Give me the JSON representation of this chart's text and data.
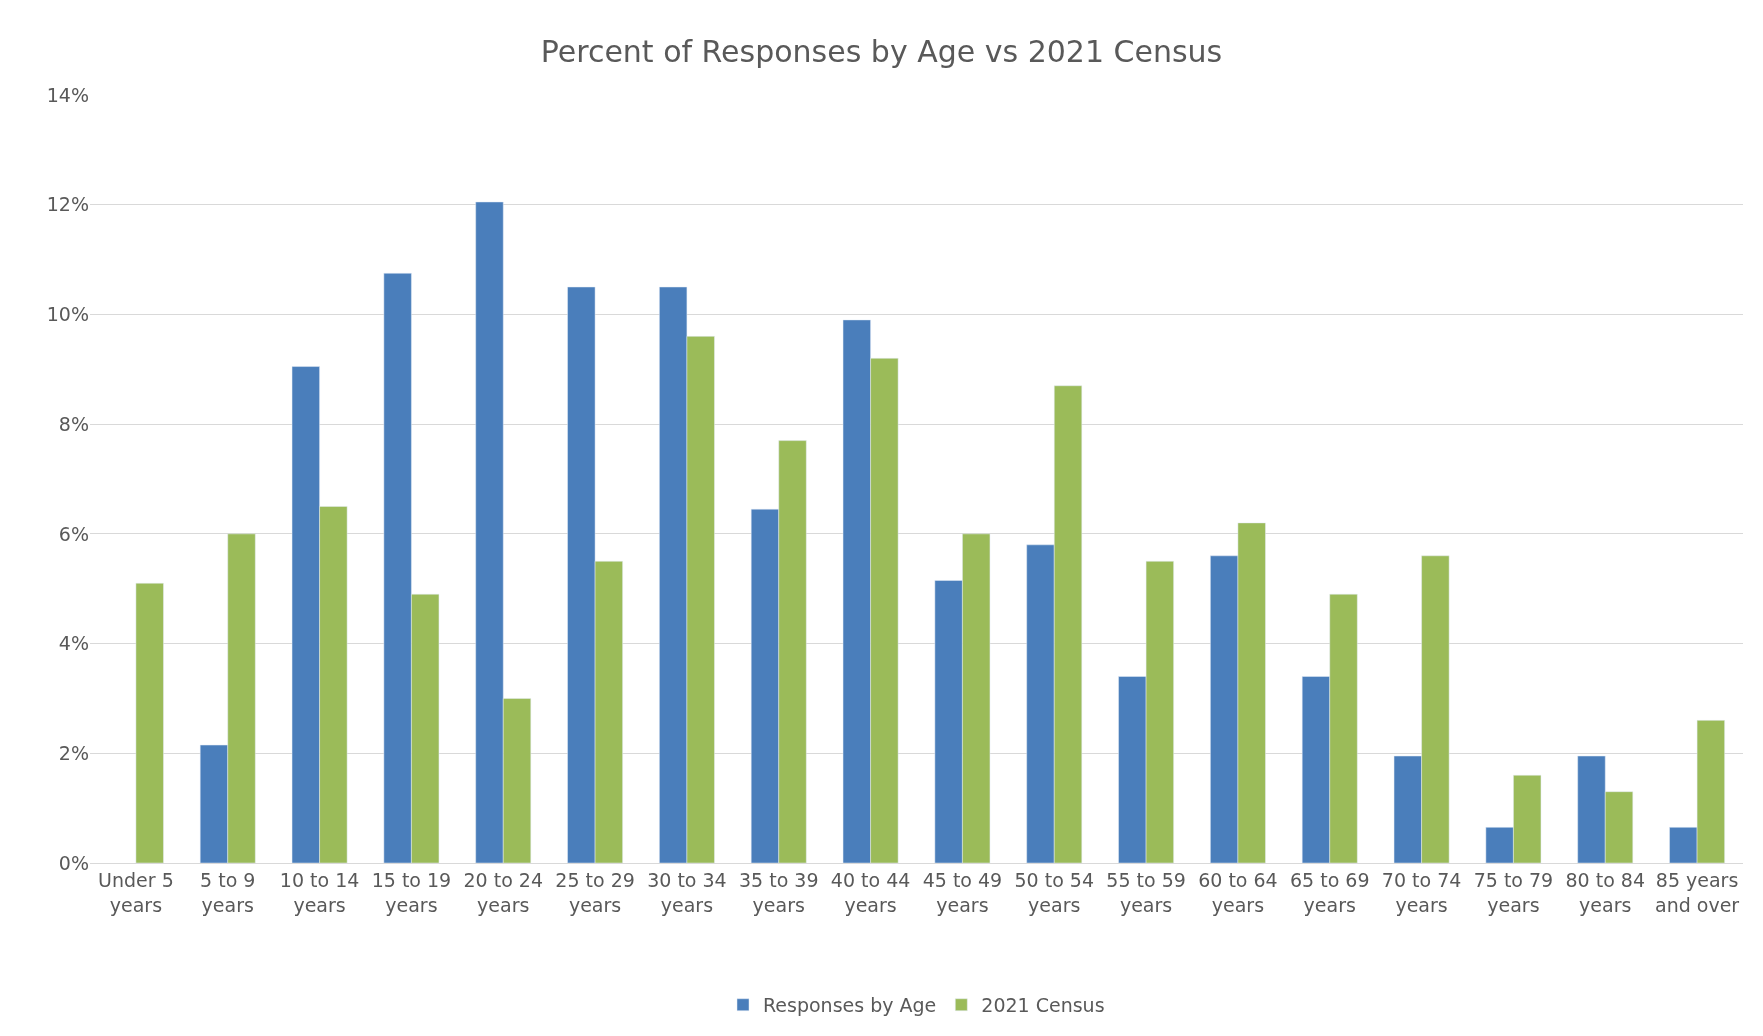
{
  "chart_data": {
    "type": "bar",
    "title": "Percent of Responses by Age vs 2021 Census",
    "categories": [
      "Under 5\nyears",
      "5 to 9\nyears",
      "10 to 14\nyears",
      "15 to 19\nyears",
      "20 to 24\nyears",
      "25 to 29\nyears",
      "30 to 34\nyears",
      "35 to 39\nyears",
      "40 to 44\nyears",
      "45 to 49\nyears",
      "50 to 54\nyears",
      "55 to 59\nyears",
      "60 to 64\nyears",
      "65 to 69\nyears",
      "70 to 74\nyears",
      "75 to 79\nyears",
      "80 to 84\nyears",
      "85 years\nand over"
    ],
    "series": [
      {
        "name": "Responses by Age",
        "color": "#4a7ebb",
        "values": [
          null,
          2.15,
          9.05,
          10.75,
          12.05,
          10.5,
          10.5,
          6.45,
          9.9,
          5.15,
          5.8,
          3.4,
          5.6,
          3.4,
          1.95,
          0.65,
          1.95,
          0.65
        ]
      },
      {
        "name": "2021 Census",
        "color": "#9bbb59",
        "values": [
          5.1,
          6.0,
          6.5,
          4.9,
          3.0,
          5.5,
          9.6,
          7.7,
          9.2,
          6.0,
          8.7,
          5.5,
          6.2,
          4.9,
          5.6,
          1.6,
          1.3,
          2.6
        ]
      }
    ],
    "ylim": [
      0,
      14
    ],
    "yticks": [
      {
        "value": 0,
        "label": "0%"
      },
      {
        "value": 2,
        "label": "2%"
      },
      {
        "value": 4,
        "label": "4%"
      },
      {
        "value": 6,
        "label": "6%"
      },
      {
        "value": 8,
        "label": "8%"
      },
      {
        "value": 10,
        "label": "10%"
      },
      {
        "value": 12,
        "label": "12%"
      },
      {
        "value": 14,
        "label": "14%"
      }
    ],
    "grid": "y",
    "legend": "bottom"
  }
}
